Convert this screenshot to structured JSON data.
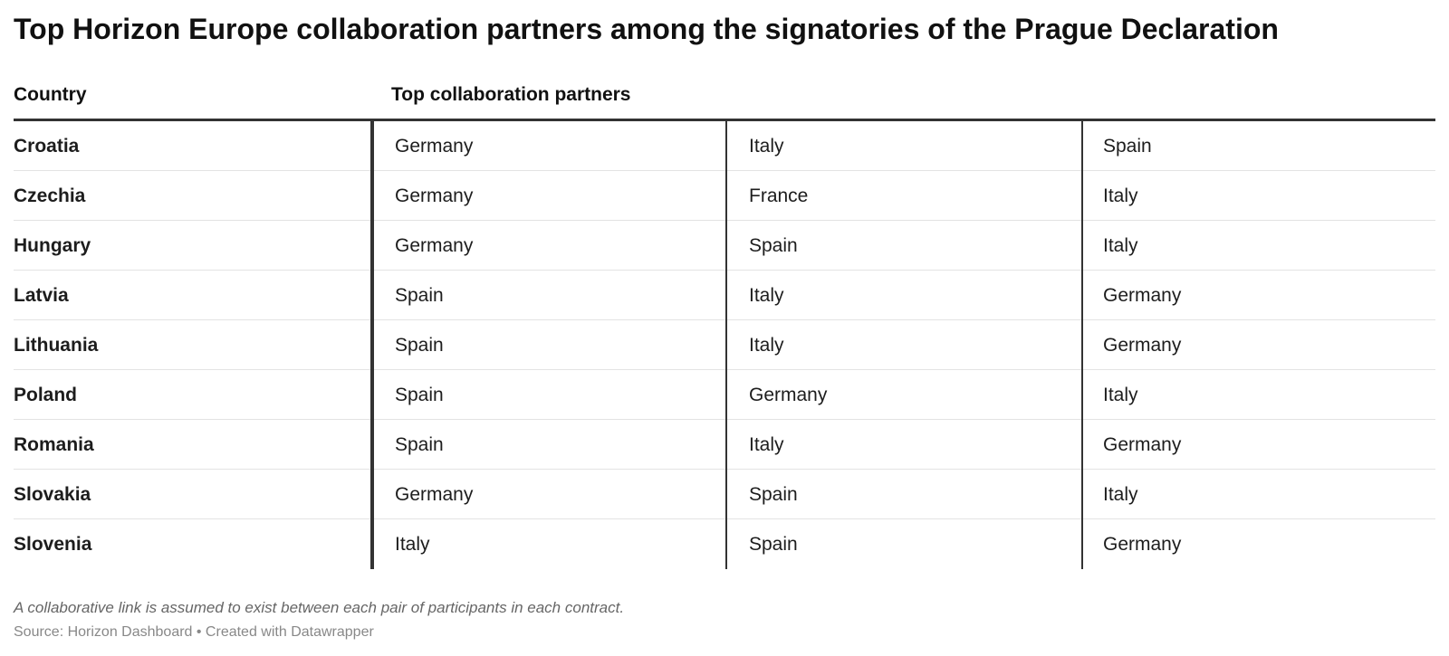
{
  "title": "Top Horizon Europe collaboration partners among the signatories of the Prague Declaration",
  "table": {
    "headers": [
      "Country",
      "Top collaboration partners"
    ],
    "rows": [
      [
        "Croatia",
        "Germany",
        "Italy",
        "Spain"
      ],
      [
        "Czechia",
        "Germany",
        "France",
        "Italy"
      ],
      [
        "Hungary",
        "Germany",
        "Spain",
        "Italy"
      ],
      [
        "Latvia",
        "Spain",
        "Italy",
        "Germany"
      ],
      [
        "Lithuania",
        "Spain",
        "Italy",
        "Germany"
      ],
      [
        "Poland",
        "Spain",
        "Germany",
        "Italy"
      ],
      [
        "Romania",
        "Spain",
        "Italy",
        "Germany"
      ],
      [
        "Slovakia",
        "Germany",
        "Spain",
        "Italy"
      ],
      [
        "Slovenia",
        "Italy",
        "Spain",
        "Germany"
      ]
    ]
  },
  "notes": "A collaborative link is assumed to exist between each pair of participants in each contract.",
  "source": "Source: Horizon Dashboard • Created with Datawrapper"
}
